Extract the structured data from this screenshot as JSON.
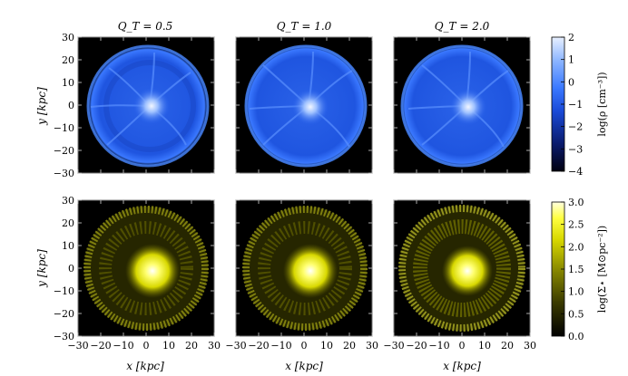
{
  "columns": [
    {
      "title": "Q_T = 0.5"
    },
    {
      "title": "Q_T = 1.0"
    },
    {
      "title": "Q_T = 2.0"
    }
  ],
  "top_row": {
    "ylabel": "y [kpc]",
    "yticks": [
      "30",
      "20",
      "10",
      "0",
      "−10",
      "−20",
      "−30"
    ],
    "colorbar": {
      "label": "log(ρ [cm⁻³])",
      "ticks": [
        "2",
        "1",
        "0",
        "−1",
        "−2",
        "−3",
        "−4"
      ],
      "range": [
        -4,
        2
      ],
      "colors": [
        "#000010",
        "#0a1a6a",
        "#1a4ad8",
        "#3a78ff",
        "#8ab4ff",
        "#e8f0ff"
      ]
    }
  },
  "bottom_row": {
    "ylabel": "y [kpc]",
    "yticks": [
      "30",
      "20",
      "10",
      "0",
      "−10",
      "−20",
      "−30"
    ],
    "xlabel": "x [kpc]",
    "xticks": [
      "−30",
      "−20",
      "−10",
      "0",
      "10",
      "20",
      "30"
    ],
    "colorbar": {
      "label": "log(Σ⋆ [M⊙pc⁻²])",
      "ticks": [
        "3.0",
        "2.5",
        "2.0",
        "1.5",
        "1.0",
        "0.5",
        "0.0"
      ],
      "range": [
        0,
        3
      ],
      "colors": [
        "#000000",
        "#3a3a00",
        "#8a8a00",
        "#d8d800",
        "#ffff40",
        "#ffffe0"
      ]
    }
  }
}
